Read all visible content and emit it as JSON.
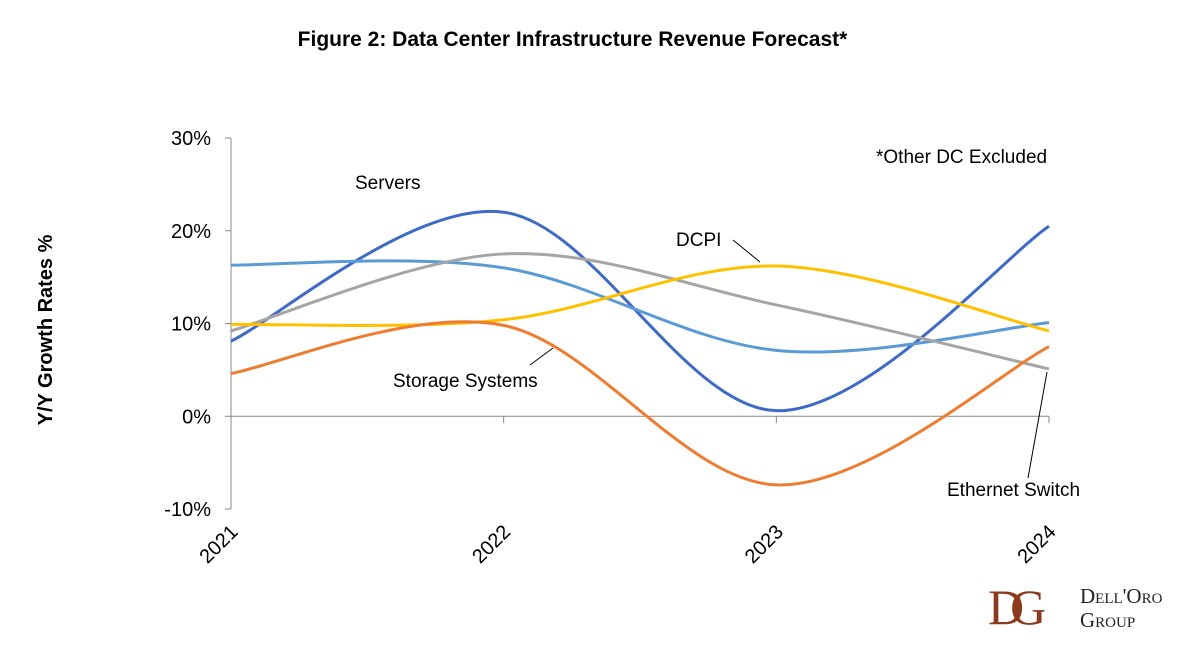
{
  "chart_data": {
    "type": "line",
    "title": "Figure 2: Data Center Infrastructure Revenue Forecast*",
    "ylabel": "Y/Y Growth Rates %",
    "xlabel": "",
    "x": [
      "2021",
      "2022",
      "2023",
      "2024"
    ],
    "ylim": [
      -10,
      30
    ],
    "yticks": [
      "-10%",
      "0%",
      "10%",
      "20%",
      "30%"
    ],
    "ytick_values": [
      -10,
      0,
      10,
      20,
      30
    ],
    "grid": false,
    "smoothed": true,
    "note": "*Other DC Excluded",
    "series": [
      {
        "name": "Servers",
        "color": "#3F6BC4",
        "values": [
          8.1,
          22.0,
          0.6,
          20.5
        ]
      },
      {
        "name": "",
        "color": "#5B9BD5",
        "values": [
          16.3,
          16.0,
          7.1,
          10.1
        ]
      },
      {
        "name": "Ethernet Switch",
        "color": "#A5A5A5",
        "values": [
          9.2,
          17.5,
          12.0,
          5.1
        ]
      },
      {
        "name": "DCPI",
        "color": "#FFC000",
        "values": [
          9.9,
          10.4,
          16.2,
          9.2
        ]
      },
      {
        "name": "Storage Systems",
        "color": "#ED7D31",
        "values": [
          4.6,
          9.8,
          -7.4,
          7.5
        ]
      }
    ]
  },
  "logo": {
    "mark": "DG",
    "line1": "Dell'Oro",
    "line2": "Group"
  }
}
